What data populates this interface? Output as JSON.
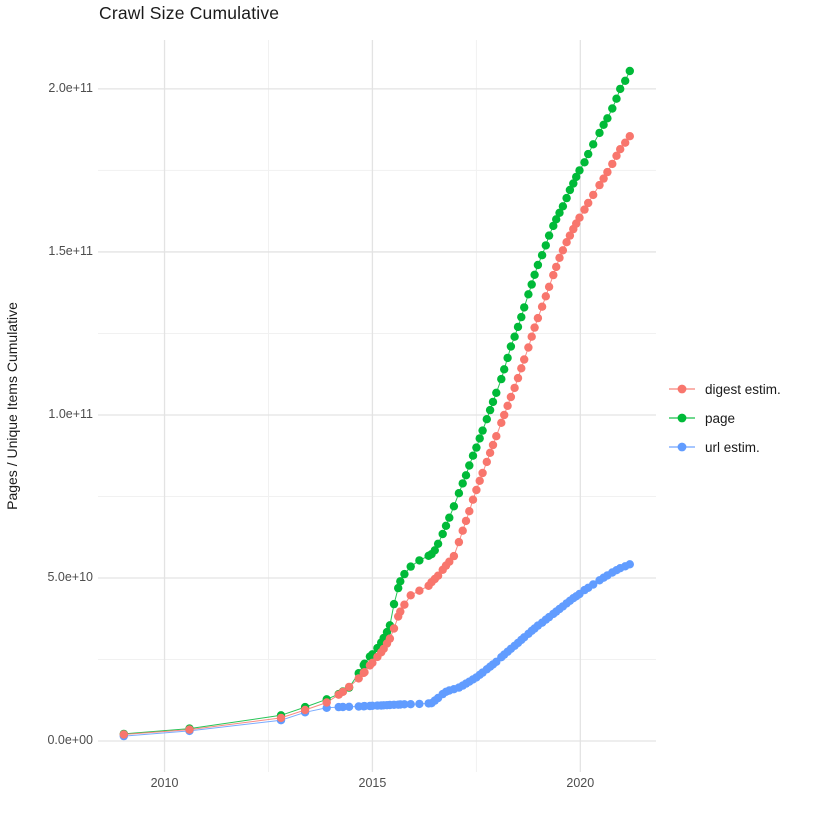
{
  "chart_data": {
    "type": "line",
    "title": "Crawl Size Cumulative",
    "xlabel": "",
    "ylabel": "Pages / Unique Items Cumulative",
    "legend_position": "right",
    "grid": "on",
    "colors": {
      "background": "#FFFFFF",
      "grid_major": "#E3E3E3",
      "grid_minor": "#F1F1F1",
      "tick_text": "#4D4D4D",
      "title_text": "#1A1A1A"
    },
    "x_ticks": {
      "values": [
        2010,
        2015,
        2020
      ],
      "labels": [
        "2010",
        "2015",
        "2020"
      ]
    },
    "x_minor": [
      2012.5,
      2017.5
    ],
    "y_ticks": {
      "values": [
        0,
        50,
        100,
        150,
        200
      ],
      "labels": [
        "0.0e+00",
        "5.0e+10",
        "1.0e+11",
        "1.5e+11",
        "2.0e+11"
      ]
    },
    "y_minor": [
      25,
      75,
      125,
      175
    ],
    "x_range": [
      2008.4,
      2021.82
    ],
    "y_range_e9": [
      -9.5,
      215
    ],
    "values_scale": "1e9 (values below are in billions)",
    "x": [
      2009.02,
      2010.6,
      2012.8,
      2013.38,
      2013.9,
      2014.19,
      2014.29,
      2014.44,
      2014.67,
      2014.79,
      2014.81,
      2014.94,
      2015.0,
      2015.12,
      2015.21,
      2015.27,
      2015.35,
      2015.42,
      2015.52,
      2015.62,
      2015.67,
      2015.77,
      2015.92,
      2016.13,
      2016.35,
      2016.42,
      2016.5,
      2016.58,
      2016.69,
      2016.77,
      2016.85,
      2016.96,
      2017.08,
      2017.17,
      2017.25,
      2017.33,
      2017.42,
      2017.5,
      2017.58,
      2017.65,
      2017.75,
      2017.83,
      2017.9,
      2017.98,
      2018.1,
      2018.17,
      2018.25,
      2018.33,
      2018.42,
      2018.5,
      2018.58,
      2018.65,
      2018.75,
      2018.83,
      2018.9,
      2018.98,
      2019.08,
      2019.17,
      2019.25,
      2019.35,
      2019.42,
      2019.5,
      2019.58,
      2019.67,
      2019.75,
      2019.83,
      2019.9,
      2019.98,
      2020.1,
      2020.19,
      2020.31,
      2020.46,
      2020.56,
      2020.65,
      2020.77,
      2020.87,
      2020.96,
      2021.08,
      2021.19
    ],
    "series": [
      {
        "name": "digest estim.",
        "color": "#F8766D",
        "values": [
          2.0,
          3.5,
          7.1,
          9.5,
          11.8,
          14.2,
          15.1,
          16.6,
          19.2,
          20.9,
          21.1,
          23.2,
          24.0,
          25.8,
          27.2,
          28.3,
          29.9,
          31.4,
          34.5,
          38.2,
          39.7,
          41.8,
          44.7,
          46.1,
          47.6,
          48.7,
          49.7,
          50.7,
          52.5,
          53.8,
          55.0,
          56.7,
          61.0,
          64.5,
          67.5,
          70.5,
          74.0,
          77.0,
          79.8,
          82.2,
          85.6,
          88.4,
          90.8,
          93.5,
          97.6,
          100.0,
          102.8,
          105.5,
          108.3,
          111.3,
          114.3,
          117.0,
          120.7,
          124.0,
          126.8,
          129.7,
          133.2,
          136.4,
          139.3,
          142.9,
          145.4,
          148.2,
          150.5,
          153.0,
          155.0,
          157.0,
          158.7,
          160.5,
          163.0,
          165.0,
          167.5,
          170.5,
          172.5,
          174.5,
          177.0,
          179.5,
          181.5,
          183.5,
          185.5
        ]
      },
      {
        "name": "page",
        "color": "#00BA38",
        "values": [
          2.2,
          3.8,
          7.9,
          10.4,
          12.8,
          14.4,
          15.2,
          16.4,
          20.8,
          23.3,
          23.7,
          25.9,
          26.6,
          28.5,
          30.2,
          31.6,
          33.4,
          35.5,
          42.0,
          46.9,
          49.0,
          51.2,
          53.5,
          55.4,
          56.8,
          57.3,
          58.5,
          60.5,
          63.5,
          66.0,
          68.5,
          72.0,
          76.0,
          79.0,
          81.5,
          84.5,
          87.5,
          90.0,
          92.8,
          95.2,
          98.7,
          101.5,
          104.0,
          106.8,
          111.0,
          114.0,
          117.5,
          121.0,
          124.0,
          127.0,
          130.0,
          133.0,
          137.0,
          140.0,
          143.0,
          146.0,
          149.0,
          152.0,
          155.0,
          158.0,
          160.0,
          162.0,
          164.0,
          166.5,
          169.0,
          171.0,
          173.0,
          175.0,
          177.5,
          180.0,
          183.0,
          186.5,
          189.0,
          191.0,
          194.0,
          197.0,
          200.0,
          202.5,
          205.5
        ]
      },
      {
        "name": "url estim.",
        "color": "#619CFF",
        "values": [
          1.5,
          3.1,
          6.4,
          8.8,
          10.2,
          10.4,
          10.45,
          10.5,
          10.6,
          10.65,
          10.7,
          10.75,
          10.8,
          10.85,
          10.9,
          10.95,
          11.0,
          11.05,
          11.1,
          11.15,
          11.2,
          11.25,
          11.3,
          11.4,
          11.55,
          11.6,
          12.4,
          13.2,
          14.4,
          15.1,
          15.5,
          15.9,
          16.4,
          17.0,
          17.6,
          18.2,
          18.9,
          19.5,
          20.3,
          21.0,
          22.0,
          22.8,
          23.5,
          24.3,
          25.7,
          26.5,
          27.4,
          28.3,
          29.2,
          30.1,
          31.0,
          31.8,
          32.9,
          33.8,
          34.5,
          35.4,
          36.3,
          37.2,
          38.0,
          39.0,
          39.7,
          40.5,
          41.3,
          42.2,
          43.0,
          43.8,
          44.4,
          45.1,
          46.3,
          47.0,
          48.0,
          49.3,
          50.1,
          50.8,
          51.7,
          52.4,
          53.0,
          53.6,
          54.2
        ]
      }
    ]
  }
}
